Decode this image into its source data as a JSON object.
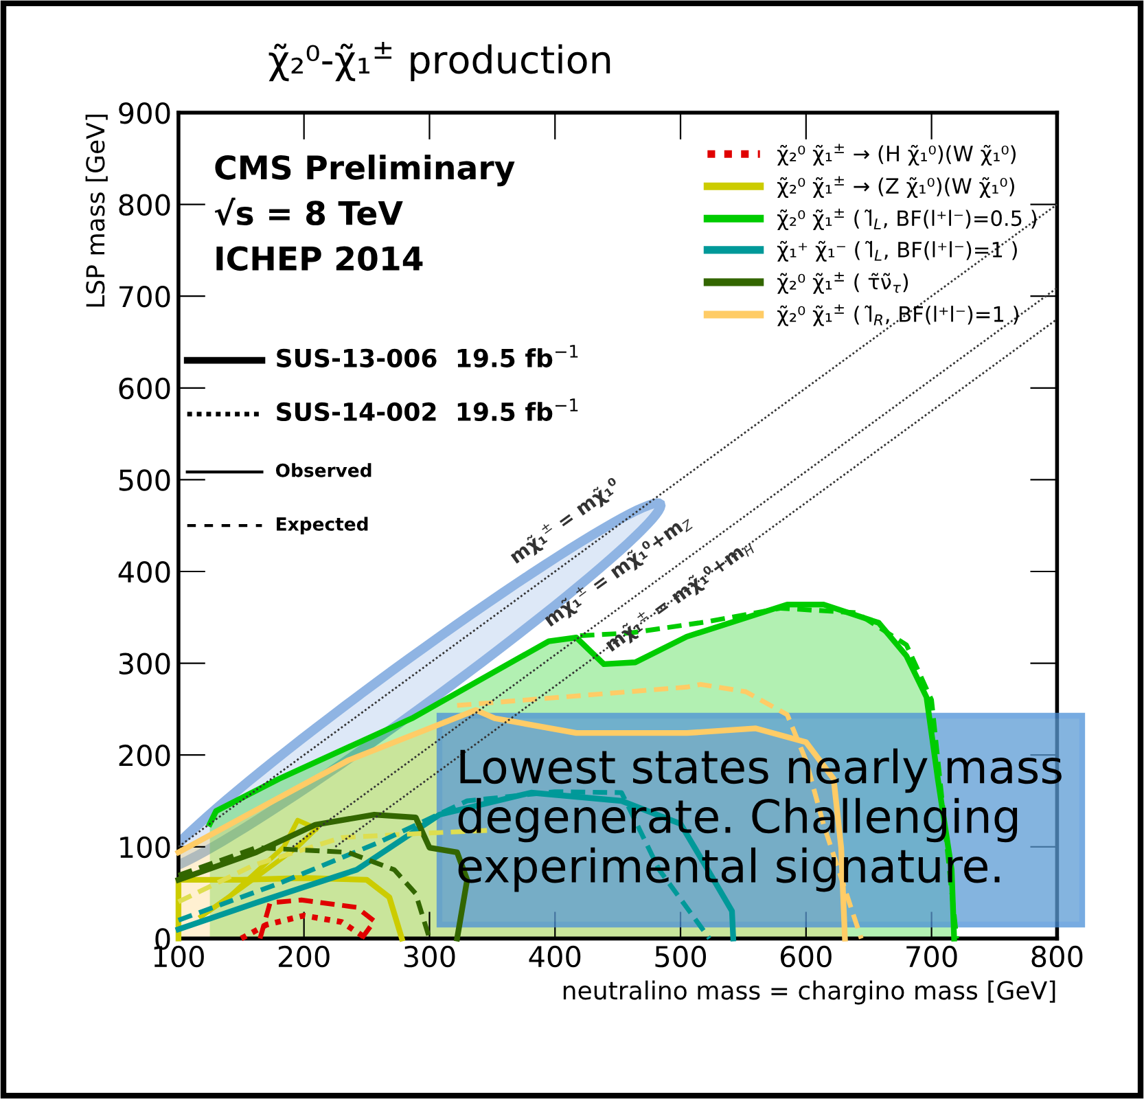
{
  "chart_data": {
    "type": "line",
    "title": "χ̃₂⁰-χ̃₁$^{±}$ production",
    "xlabel": "neutralino mass = chargino mass [GeV]",
    "ylabel": "LSP mass [GeV]",
    "xlim": [
      100,
      800
    ],
    "ylim": [
      0,
      900
    ],
    "xticks": [
      100,
      200,
      300,
      400,
      500,
      600,
      700,
      800
    ],
    "yticks": [
      0,
      100,
      200,
      300,
      400,
      500,
      600,
      700,
      800,
      900
    ],
    "grid": false,
    "legend": "top right",
    "series": [
      {
        "name": "χ̃₂⁰ χ̃₁$^{±}$ → (H χ̃₁⁰)(W χ̃₁⁰)",
        "color": "#e00000",
        "line_style": "dotted",
        "x": [
          150,
          170,
          200,
          230,
          250
        ],
        "values": [
          0,
          15,
          25,
          18,
          0
        ]
      },
      {
        "name": "χ̃₂⁰ χ̃₁$^{±}$ → (Z χ̃₁⁰)(W χ̃₁⁰)",
        "color": "#cccc00",
        "line_style": "solid",
        "x": [
          100,
          100,
          150,
          200,
          250,
          268,
          278
        ],
        "values": [
          0,
          64,
          64,
          66,
          64,
          45,
          0
        ]
      },
      {
        "color": "#cccc00",
        "line_style": "solid",
        "x": [
          118,
          140,
          184,
          195,
          210
        ],
        "values": [
          24,
          45,
          100,
          129,
          120
        ]
      },
      {
        "color": "#cccc00",
        "line_style": "solid",
        "x": [
          118,
          150,
          195,
          210
        ],
        "values": [
          24,
          55,
          100,
          120
        ]
      },
      {
        "name": "χ̃₂⁰ χ̃₁$^{±}$ ( l̃$_{L}$, BF(l⁺l⁻)=0.5 )",
        "color": "#00cc00",
        "type": "area",
        "line_style": "solid",
        "x": [
          125,
          130,
          180,
          286,
          395,
          417,
          439,
          464,
          505,
          585,
          614,
          658,
          680,
          696,
          705,
          716,
          718
        ],
        "values": [
          125,
          139,
          174,
          240,
          324,
          328,
          299,
          301,
          329,
          364,
          364,
          344,
          308,
          263,
          174,
          75,
          0
        ]
      },
      {
        "name": "χ̃₁⁺ χ̃₁⁻ ( l̃$_{L}$, BF(l⁺l⁻)=1 )",
        "color": "#009999",
        "line_style": "solid",
        "x": [
          100,
          162,
          242,
          308,
          381,
          453,
          500,
          520,
          541,
          542
        ],
        "values": [
          10,
          39,
          75,
          135,
          159,
          150,
          125,
          79,
          30,
          0
        ]
      },
      {
        "name": "χ̃₂⁰ χ̃₁$^{±}$ ( τ̃ν̃$_{τ}$)",
        "color": "#336600",
        "line_style": "solid",
        "x": [
          100,
          162,
          209,
          256,
          289,
          300,
          322,
          330,
          322
        ],
        "values": [
          64,
          94,
          124,
          135,
          132,
          99,
          94,
          64,
          0
        ]
      },
      {
        "name": "χ̃₂⁰ χ̃₁$^{±}$ ( l̃$_{R}$, BF(l⁺l⁻)=1 )",
        "color": "#ffcc66",
        "type": "area",
        "line_style": "solid",
        "x": [
          100,
          147,
          235,
          337,
          352,
          417,
          505,
          560,
          600,
          622,
          628,
          631
        ],
        "values": [
          94,
          129,
          194,
          249,
          240,
          224,
          224,
          229,
          214,
          174,
          99,
          0
        ]
      },
      {
        "color": "#e00000",
        "line_style": "dashed",
        "x": [
          165,
          173,
          198,
          242,
          256,
          246
        ],
        "values": [
          0,
          39,
          42,
          34,
          19,
          0
        ]
      },
      {
        "color": "#dede50",
        "line_style": "dashed",
        "x": [
          100,
          160,
          230,
          300,
          350
        ],
        "values": [
          40,
          80,
          110,
          115,
          118
        ]
      },
      {
        "color": "#00cc00",
        "line_style": "dashed",
        "x": [
          420,
          460,
          520,
          580,
          640,
          680,
          700,
          720
        ],
        "values": [
          330,
          333,
          345,
          360,
          355,
          320,
          260,
          0
        ]
      },
      {
        "color": "#009999",
        "line_style": "dashed",
        "x": [
          100,
          180,
          260,
          330,
          400,
          453,
          483,
          523
        ],
        "values": [
          20,
          60,
          105,
          150,
          160,
          159,
          75,
          0
        ]
      },
      {
        "color": "#336600",
        "line_style": "dashed",
        "x": [
          100,
          162,
          235,
          272,
          289,
          300
        ],
        "values": [
          69,
          99,
          94,
          75,
          49,
          0
        ]
      },
      {
        "color": "#ffcc66",
        "line_style": "dashed",
        "x": [
          322,
          505,
          516,
          552,
          585,
          600,
          614,
          644
        ],
        "values": [
          254,
          274,
          277,
          269,
          244,
          194,
          124,
          0
        ]
      },
      {
        "color": "#333333",
        "line_style": "dotted",
        "x": [
          100,
          800
        ],
        "values": [
          100,
          800
        ]
      },
      {
        "color": "#333333",
        "line_style": "dotted",
        "x": [
          191,
          800
        ],
        "values": [
          100,
          709
        ]
      },
      {
        "color": "#333333",
        "line_style": "dotted",
        "x": [
          225,
          800
        ],
        "values": [
          100,
          675
        ]
      }
    ],
    "annotations": [
      "CMS Preliminary",
      "√s = 8 TeV",
      "ICHEP 2014",
      "SUS-13-006  19.5 fb$^{−1}$",
      "SUS-14-002  19.5 fb$^{−1}$",
      "Observed",
      "Expected",
      "mχ̃₁$^{±}$ = mχ̃₁⁰",
      "mχ̃₁$^{±}$ = mχ̃₁⁰+m$_{Z}$",
      "mχ̃₁$^{±}$ = mχ̃₁⁰+m$_{H}$",
      "Lowest states nearly mass degenerate. Challenging experimental signature."
    ]
  }
}
